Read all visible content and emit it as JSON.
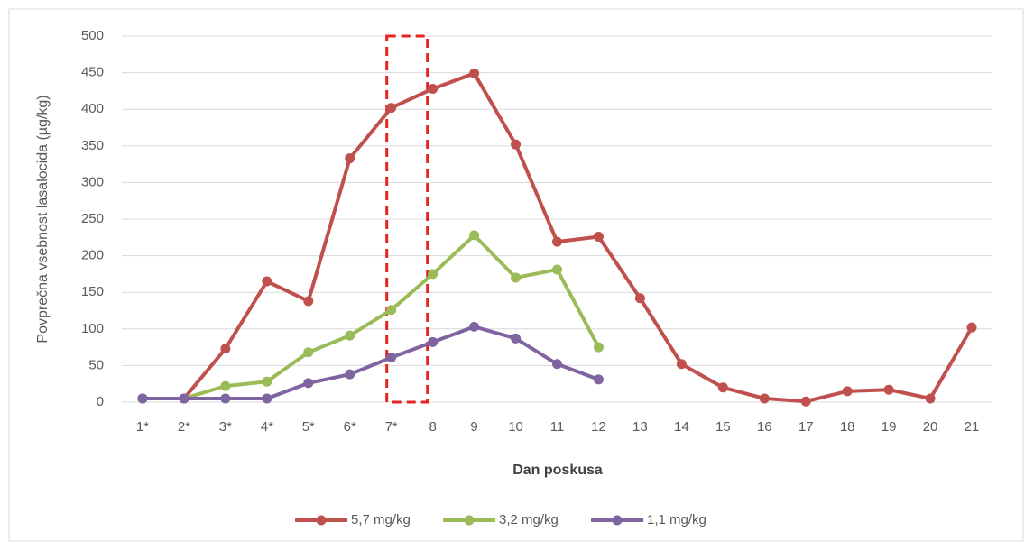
{
  "chart_data": {
    "type": "line",
    "x_label": "Dan poskusa",
    "y_label": "Povprečna vsebnost lasalocida (µg/kg)",
    "categories": [
      "1*",
      "2*",
      "3*",
      "4*",
      "5*",
      "6*",
      "7*",
      "8",
      "9",
      "10",
      "11",
      "12",
      "13",
      "14",
      "15",
      "16",
      "17",
      "18",
      "19",
      "20",
      "21"
    ],
    "series": [
      {
        "name": "5,7 mg/kg",
        "color": "#c0504d",
        "values": [
          5,
          5,
          73,
          165,
          138,
          333,
          402,
          428,
          449,
          352,
          219,
          226,
          142,
          52,
          20,
          5,
          1,
          15,
          17,
          5,
          102
        ]
      },
      {
        "name": "3,2 mg/kg",
        "color": "#9bbb59",
        "values": [
          5,
          5,
          22,
          28,
          68,
          91,
          126,
          175,
          228,
          170,
          181,
          75,
          null,
          null,
          null,
          null,
          null,
          null,
          null,
          null,
          null
        ]
      },
      {
        "name": "1,1 mg/kg",
        "color": "#8064a2",
        "values": [
          5,
          5,
          5,
          5,
          26,
          38,
          61,
          82,
          103,
          87,
          52,
          31,
          null,
          null,
          null,
          null,
          null,
          null,
          null,
          null,
          null
        ]
      }
    ],
    "ylim": [
      0,
      500
    ],
    "yticks": [
      0,
      50,
      100,
      150,
      200,
      250,
      300,
      350,
      400,
      450,
      500
    ],
    "grid": true,
    "legend": "bottom"
  }
}
